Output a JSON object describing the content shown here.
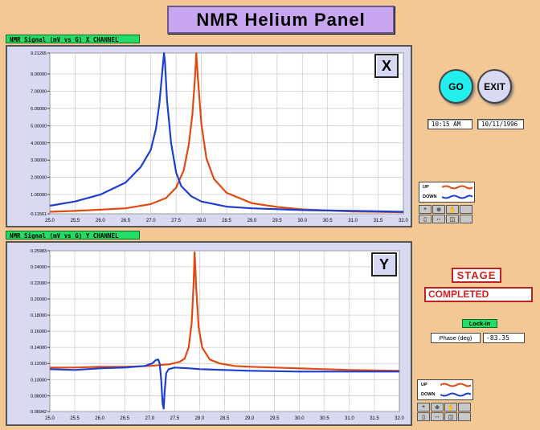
{
  "window": {
    "title": "NMR Helium Panel"
  },
  "colors": {
    "background": "#f4c894",
    "up_trace": "#e04a10",
    "down_trace": "#1d3fd0",
    "go": "#22eeee",
    "stage": "#d21f1f",
    "label_green": "#22dd66"
  },
  "controls": {
    "go_label": "GO",
    "exit_label": "EXIT",
    "time": "10:15 AM",
    "date": "10/11/1996"
  },
  "legend": {
    "up_label": "UP",
    "down_label": "DOWN"
  },
  "palette_icons": [
    "cursor-icon",
    "zoom-icon",
    "hand-icon",
    "lock-icon",
    "pan-icon",
    "scale-icon",
    "fit-icon",
    "blank-icon"
  ],
  "stage": {
    "label": "STAGE",
    "value": "COMPLETED"
  },
  "lockin": {
    "label": "Lock-in",
    "phase_label": "Phase (deg)",
    "phase_value": "-83.35"
  },
  "graphs": {
    "x": {
      "channel_label": "NMR Signal (mV vs G) X CHANNEL",
      "corner_label": "X"
    },
    "y": {
      "channel_label": "NMR Signal (mV vs G) Y CHANNEL",
      "corner_label": "Y"
    }
  },
  "chart_data": [
    {
      "type": "line",
      "title": "NMR Signal (mV vs G) X CHANNEL",
      "xlim": [
        25.0,
        32.0
      ],
      "ylim": [
        -0.11561,
        9.21265
      ],
      "x_ticks": [
        "25.0",
        "25.5",
        "26.0",
        "26.5",
        "27.0",
        "27.5",
        "28.0",
        "28.5",
        "29.0",
        "29.5",
        "30.0",
        "30.5",
        "31.0",
        "31.5",
        "32.0"
      ],
      "y_ticks": [
        "-0.11561",
        "1.00000",
        "2.00000",
        "3.00000",
        "4.00000",
        "5.00000",
        "6.00000",
        "7.00000",
        "8.00000",
        "9.21265"
      ],
      "grid": true,
      "series": [
        {
          "name": "UP",
          "color": "#e04a10",
          "x": [
            25.0,
            25.5,
            26.0,
            26.5,
            27.0,
            27.3,
            27.5,
            27.65,
            27.75,
            27.82,
            27.87,
            27.9,
            27.93,
            28.0,
            28.1,
            28.25,
            28.5,
            29.0,
            29.5,
            30.0,
            31.0,
            32.0
          ],
          "y": [
            0.0,
            0.05,
            0.12,
            0.2,
            0.45,
            0.8,
            1.4,
            2.4,
            3.9,
            5.6,
            7.6,
            9.21,
            7.8,
            5.1,
            3.1,
            1.9,
            1.1,
            0.5,
            0.28,
            0.14,
            0.02,
            -0.02
          ]
        },
        {
          "name": "DOWN",
          "color": "#1d3fd0",
          "x": [
            25.0,
            25.5,
            26.0,
            26.5,
            26.8,
            27.0,
            27.1,
            27.17,
            27.22,
            27.26,
            27.28,
            27.32,
            27.4,
            27.5,
            27.6,
            27.8,
            28.0,
            28.5,
            29.0,
            30.0,
            31.0,
            32.0
          ],
          "y": [
            0.35,
            0.6,
            1.0,
            1.7,
            2.6,
            3.6,
            4.8,
            6.3,
            7.9,
            9.21,
            8.7,
            6.5,
            4.0,
            2.3,
            1.5,
            0.9,
            0.6,
            0.3,
            0.2,
            0.1,
            0.05,
            0.0
          ]
        }
      ]
    },
    {
      "type": "line",
      "title": "NMR Signal (mV vs G) Y CHANNEL",
      "xlim": [
        25.0,
        32.0
      ],
      "ylim": [
        0.06042,
        0.25983
      ],
      "x_ticks": [
        "25.0",
        "25.5",
        "26.0",
        "26.5",
        "27.0",
        "27.5",
        "28.0",
        "28.5",
        "29.0",
        "29.5",
        "30.0",
        "30.5",
        "31.0",
        "31.5",
        "32.0"
      ],
      "y_ticks": [
        "0.06042",
        "0.08000",
        "0.10000",
        "0.12000",
        "0.14000",
        "0.16000",
        "0.18000",
        "0.20000",
        "0.22000",
        "0.24000",
        "0.25983"
      ],
      "grid": true,
      "series": [
        {
          "name": "UP",
          "color": "#e04a10",
          "x": [
            25.0,
            25.5,
            26.0,
            26.5,
            27.0,
            27.4,
            27.6,
            27.7,
            27.78,
            27.84,
            27.88,
            27.9,
            27.93,
            27.98,
            28.05,
            28.2,
            28.4,
            28.7,
            29.0,
            30.0,
            31.0,
            32.0
          ],
          "y": [
            0.115,
            0.115,
            0.116,
            0.116,
            0.117,
            0.119,
            0.122,
            0.126,
            0.14,
            0.17,
            0.22,
            0.258,
            0.215,
            0.165,
            0.14,
            0.125,
            0.12,
            0.117,
            0.116,
            0.114,
            0.112,
            0.111
          ]
        },
        {
          "name": "DOWN",
          "color": "#1d3fd0",
          "x": [
            25.0,
            25.5,
            26.0,
            26.5,
            26.9,
            27.05,
            27.12,
            27.17,
            27.2,
            27.23,
            27.26,
            27.28,
            27.3,
            27.33,
            27.38,
            27.5,
            27.8,
            28.0,
            29.0,
            30.0,
            31.0,
            32.0
          ],
          "y": [
            0.113,
            0.112,
            0.114,
            0.115,
            0.117,
            0.12,
            0.124,
            0.125,
            0.12,
            0.1,
            0.07,
            0.064,
            0.085,
            0.108,
            0.113,
            0.115,
            0.114,
            0.113,
            0.111,
            0.11,
            0.11,
            0.11
          ]
        }
      ]
    }
  ]
}
